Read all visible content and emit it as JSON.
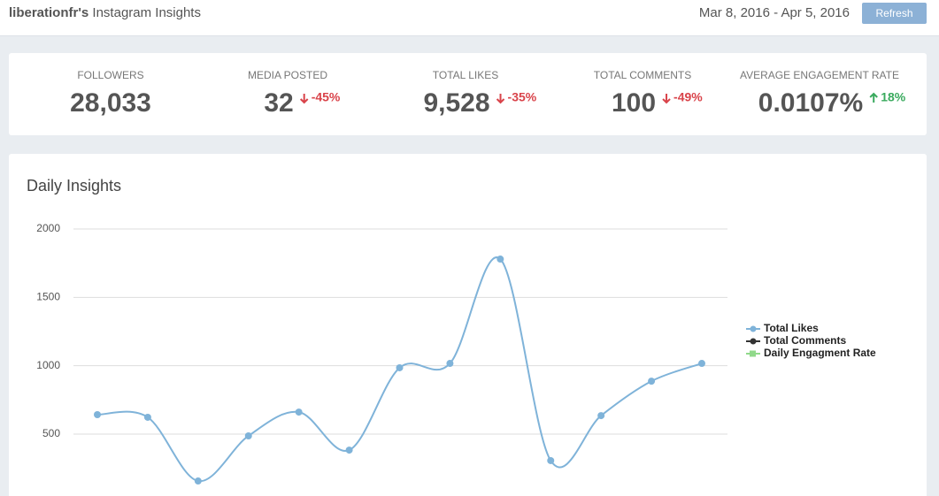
{
  "header": {
    "user": "liberationfr's",
    "title": "Instagram Insights",
    "date_range": "Mar 8, 2016 - Apr 5, 2016",
    "refresh": "Refresh"
  },
  "stats": [
    {
      "label": "FOLLOWERS",
      "value": "28,033"
    },
    {
      "label": "MEDIA POSTED",
      "value": "32",
      "change": "-45%",
      "direction": "down"
    },
    {
      "label": "TOTAL LIKES",
      "value": "9,528",
      "change": "-35%",
      "direction": "down"
    },
    {
      "label": "TOTAL COMMENTS",
      "value": "100",
      "change": "-49%",
      "direction": "down"
    },
    {
      "label": "AVERAGE ENGAGEMENT RATE",
      "value": "0.0107%",
      "change": "18%",
      "direction": "up"
    }
  ],
  "chart_data": {
    "type": "line",
    "title": "Daily Insights",
    "categories": [
      null,
      null,
      null,
      null,
      null,
      null,
      null,
      null,
      null,
      null,
      null,
      null,
      null
    ],
    "series": [
      {
        "name": "Total Likes",
        "color": "#7fb3d9",
        "values": [
          642,
          623,
          157,
          487,
          661,
          383,
          985,
          1017,
          1780,
          306,
          635,
          887,
          1017
        ]
      },
      {
        "name": "Total Comments",
        "color": "#333333",
        "values": [
          null,
          null,
          null,
          null,
          null,
          null,
          null,
          null,
          null,
          null,
          null,
          null,
          null
        ]
      },
      {
        "name": "Daily Engagment Rate",
        "color": "#90d98a",
        "values": [
          null,
          null,
          null,
          null,
          null,
          null,
          null,
          null,
          null,
          null,
          null,
          null,
          null
        ]
      }
    ],
    "ylim": [
      0,
      2000
    ],
    "yticks": [
      500,
      1000,
      1500,
      2000
    ],
    "grid": true
  }
}
